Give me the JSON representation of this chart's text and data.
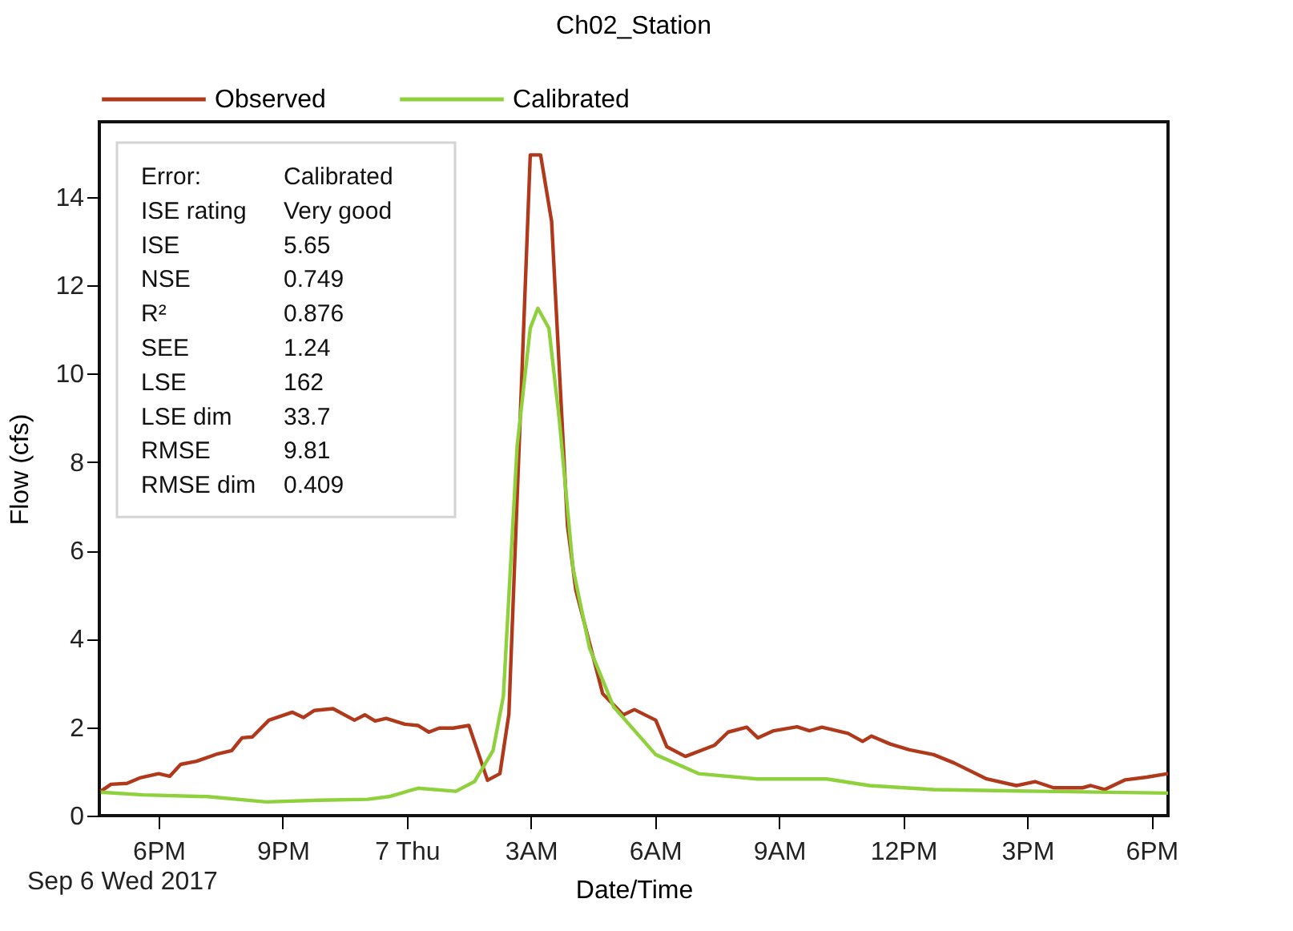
{
  "chart_data": {
    "type": "line",
    "title": "Ch02_Station",
    "xlabel": "Date/Time",
    "ylabel": "Flow (cfs)",
    "xlim": [
      "2017-09-06T16:34",
      "2017-09-07T18:24"
    ],
    "xticks": [
      {
        "value": "2017-09-06T18:00",
        "label": "6PM"
      },
      {
        "value": "2017-09-06T21:00",
        "label": "9PM"
      },
      {
        "value": "2017-09-07T00:00",
        "label": "7 Thu"
      },
      {
        "value": "2017-09-07T03:00",
        "label": "3AM"
      },
      {
        "value": "2017-09-07T06:00",
        "label": "6AM"
      },
      {
        "value": "2017-09-07T09:00",
        "label": "9AM"
      },
      {
        "value": "2017-09-07T12:00",
        "label": "12PM"
      },
      {
        "value": "2017-09-07T15:00",
        "label": "3PM"
      },
      {
        "value": "2017-09-07T18:00",
        "label": "6PM"
      }
    ],
    "ylim": [
      0,
      15.7
    ],
    "yticks": [
      0,
      2,
      4,
      6,
      8,
      10,
      12,
      14
    ],
    "grid": false,
    "legend": "top",
    "marker": "none",
    "line_style": "solid",
    "annotations": [
      "Error:",
      "Calibrated",
      "ISE rating",
      "Very good",
      "ISE",
      "5.65",
      "NSE",
      "0.749",
      "R²",
      "0.876",
      "SEE",
      "1.24",
      "LSE",
      "162",
      "LSE dim",
      "33.7",
      "RMSE",
      "9.81",
      "RMSE dim",
      "0.409",
      "Sep 6 Wed 2017"
    ],
    "series": [
      {
        "name": "Observed",
        "color": "#b0391b",
        "x": [
          "2017-09-06T16:36",
          "2017-09-06T16:51",
          "2017-09-06T17:14",
          "2017-09-06T17:34",
          "2017-09-06T18:00",
          "2017-09-06T18:16",
          "2017-09-06T18:32",
          "2017-09-06T18:55",
          "2017-09-06T19:26",
          "2017-09-06T19:46",
          "2017-09-06T20:01",
          "2017-09-06T20:16",
          "2017-09-06T20:40",
          "2017-09-06T21:14",
          "2017-09-06T21:30",
          "2017-09-06T21:46",
          "2017-09-06T22:13",
          "2017-09-06T22:44",
          "2017-09-06T22:59",
          "2017-09-06T23:14",
          "2017-09-06T23:30",
          "2017-09-06T23:57",
          "2017-09-07T00:16",
          "2017-09-07T00:32",
          "2017-09-07T00:47",
          "2017-09-07T01:07",
          "2017-09-07T01:30",
          "2017-09-07T01:57",
          "2017-09-07T02:15",
          "2017-09-07T02:28",
          "2017-09-07T02:59",
          "2017-09-07T03:14",
          "2017-09-07T03:30",
          "2017-09-07T03:53",
          "2017-09-07T04:05",
          "2017-09-07T04:44",
          "2017-09-07T05:14",
          "2017-09-07T05:30",
          "2017-09-07T06:01",
          "2017-09-07T06:17",
          "2017-09-07T06:44",
          "2017-09-07T07:26",
          "2017-09-07T07:46",
          "2017-09-07T08:13",
          "2017-09-07T08:29",
          "2017-09-07T08:52",
          "2017-09-07T09:26",
          "2017-09-07T09:44",
          "2017-09-07T10:02",
          "2017-09-07T10:40",
          "2017-09-07T11:01",
          "2017-09-07T11:14",
          "2017-09-07T11:41",
          "2017-09-07T12:09",
          "2017-09-07T12:44",
          "2017-09-07T13:14",
          "2017-09-07T14:01",
          "2017-09-07T14:44",
          "2017-09-07T15:11",
          "2017-09-07T15:38",
          "2017-09-07T16:20",
          "2017-09-07T16:32",
          "2017-09-07T16:52",
          "2017-09-07T17:22",
          "2017-09-07T17:53",
          "2017-09-07T18:24"
        ],
        "values": [
          0.55,
          0.71,
          0.73,
          0.86,
          0.95,
          0.89,
          1.16,
          1.23,
          1.4,
          1.47,
          1.76,
          1.78,
          2.16,
          2.34,
          2.22,
          2.38,
          2.42,
          2.16,
          2.28,
          2.14,
          2.2,
          2.07,
          2.04,
          1.89,
          1.98,
          1.98,
          2.04,
          0.8,
          0.95,
          2.3,
          14.95,
          14.95,
          13.44,
          6.56,
          5.11,
          2.76,
          2.28,
          2.4,
          2.16,
          1.56,
          1.34,
          1.59,
          1.89,
          2.0,
          1.76,
          1.92,
          2.01,
          1.92,
          2.0,
          1.86,
          1.68,
          1.8,
          1.62,
          1.49,
          1.38,
          1.19,
          0.83,
          0.68,
          0.77,
          0.63,
          0.63,
          0.68,
          0.59,
          0.81,
          0.87,
          0.95
        ]
      },
      {
        "name": "Calibrated",
        "color": "#8ed13c",
        "x": [
          "2017-09-06T16:36",
          "2017-09-06T17:38",
          "2017-09-06T19:11",
          "2017-09-06T20:36",
          "2017-09-06T21:53",
          "2017-09-06T23:03",
          "2017-09-06T23:34",
          "2017-09-07T00:16",
          "2017-09-07T01:11",
          "2017-09-07T01:38",
          "2017-09-07T02:05",
          "2017-09-07T02:20",
          "2017-09-07T02:40",
          "2017-09-07T02:59",
          "2017-09-07T03:10",
          "2017-09-07T03:26",
          "2017-09-07T03:41",
          "2017-09-07T04:01",
          "2017-09-07T04:25",
          "2017-09-07T05:00",
          "2017-09-07T06:01",
          "2017-09-07T07:03",
          "2017-09-07T08:28",
          "2017-09-07T10:09",
          "2017-09-07T11:11",
          "2017-09-07T12:44",
          "2017-09-07T15:19",
          "2017-09-07T18:24"
        ],
        "values": [
          0.53,
          0.47,
          0.43,
          0.31,
          0.35,
          0.37,
          0.43,
          0.62,
          0.55,
          0.77,
          1.47,
          2.7,
          8.37,
          11.03,
          11.48,
          11.03,
          8.98,
          5.6,
          3.79,
          2.46,
          1.38,
          0.95,
          0.83,
          0.83,
          0.68,
          0.59,
          0.55,
          0.51
        ]
      }
    ]
  }
}
